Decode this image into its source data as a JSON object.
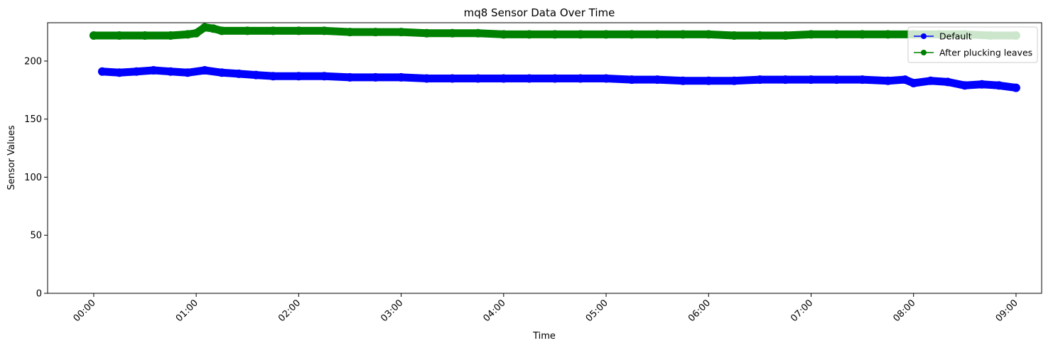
{
  "chart_data": {
    "type": "line",
    "title": "mq8 Sensor Data Over Time",
    "xlabel": "Time",
    "ylabel": "Sensor Values",
    "x_ticks": [
      "00:00",
      "01:00",
      "02:00",
      "03:00",
      "04:00",
      "05:00",
      "06:00",
      "07:00",
      "08:00",
      "09:00"
    ],
    "xlim_hours": [
      -0.45,
      9.25
    ],
    "ylim": [
      0,
      233
    ],
    "y_ticks": [
      0,
      50,
      100,
      150,
      200
    ],
    "grid": false,
    "legend_position": "top-right",
    "series": [
      {
        "name": "Default",
        "color": "#0000ff",
        "marker": "circle",
        "points": [
          [
            "00:05",
            191
          ],
          [
            "00:15",
            190
          ],
          [
            "00:25",
            191
          ],
          [
            "00:35",
            192
          ],
          [
            "00:45",
            191
          ],
          [
            "00:55",
            190
          ],
          [
            "01:05",
            192
          ],
          [
            "01:15",
            190
          ],
          [
            "01:25",
            189
          ],
          [
            "01:35",
            188
          ],
          [
            "01:45",
            187
          ],
          [
            "02:00",
            187
          ],
          [
            "02:15",
            187
          ],
          [
            "02:30",
            186
          ],
          [
            "02:45",
            186
          ],
          [
            "03:00",
            186
          ],
          [
            "03:15",
            185
          ],
          [
            "03:30",
            185
          ],
          [
            "03:45",
            185
          ],
          [
            "04:00",
            185
          ],
          [
            "04:15",
            185
          ],
          [
            "04:30",
            185
          ],
          [
            "04:45",
            185
          ],
          [
            "05:00",
            185
          ],
          [
            "05:15",
            184
          ],
          [
            "05:30",
            184
          ],
          [
            "05:45",
            183
          ],
          [
            "06:00",
            183
          ],
          [
            "06:15",
            183
          ],
          [
            "06:30",
            184
          ],
          [
            "06:45",
            184
          ],
          [
            "07:00",
            184
          ],
          [
            "07:15",
            184
          ],
          [
            "07:30",
            184
          ],
          [
            "07:45",
            183
          ],
          [
            "07:55",
            184
          ],
          [
            "08:00",
            181
          ],
          [
            "08:10",
            183
          ],
          [
            "08:20",
            182
          ],
          [
            "08:30",
            179
          ],
          [
            "08:40",
            180
          ],
          [
            "08:50",
            179
          ],
          [
            "09:00",
            177
          ]
        ]
      },
      {
        "name": "After plucking leaves",
        "color": "#008000",
        "marker": "circle",
        "points": [
          [
            "00:00",
            222
          ],
          [
            "00:15",
            222
          ],
          [
            "00:30",
            222
          ],
          [
            "00:45",
            222
          ],
          [
            "00:55",
            223
          ],
          [
            "01:00",
            224
          ],
          [
            "01:05",
            229
          ],
          [
            "01:10",
            228
          ],
          [
            "01:15",
            226
          ],
          [
            "01:30",
            226
          ],
          [
            "01:45",
            226
          ],
          [
            "02:00",
            226
          ],
          [
            "02:15",
            226
          ],
          [
            "02:30",
            225
          ],
          [
            "02:45",
            225
          ],
          [
            "03:00",
            225
          ],
          [
            "03:15",
            224
          ],
          [
            "03:30",
            224
          ],
          [
            "03:45",
            224
          ],
          [
            "04:00",
            223
          ],
          [
            "04:15",
            223
          ],
          [
            "04:30",
            223
          ],
          [
            "04:45",
            223
          ],
          [
            "05:00",
            223
          ],
          [
            "05:15",
            223
          ],
          [
            "05:30",
            223
          ],
          [
            "05:45",
            223
          ],
          [
            "06:00",
            223
          ],
          [
            "06:15",
            222
          ],
          [
            "06:30",
            222
          ],
          [
            "06:45",
            222
          ],
          [
            "07:00",
            223
          ],
          [
            "07:15",
            223
          ],
          [
            "07:30",
            223
          ],
          [
            "07:45",
            223
          ],
          [
            "08:00",
            223
          ],
          [
            "08:15",
            223
          ],
          [
            "08:30",
            223
          ],
          [
            "08:45",
            222
          ],
          [
            "09:00",
            222
          ]
        ]
      }
    ]
  }
}
